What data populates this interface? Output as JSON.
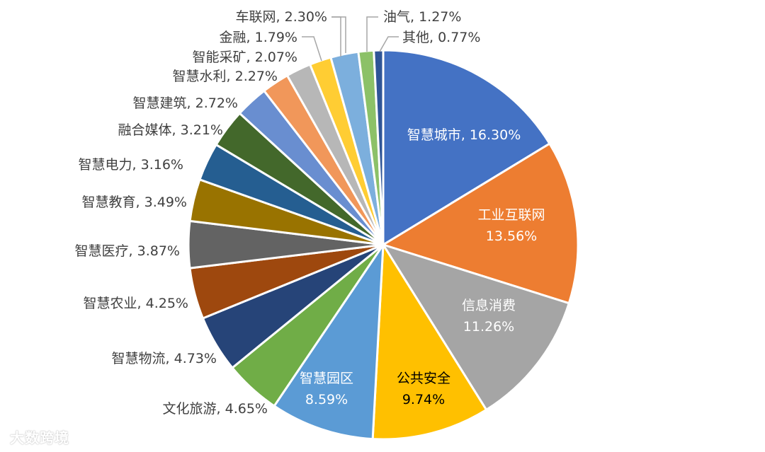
{
  "chart_data": {
    "type": "pie",
    "start_angle_deg": 0,
    "direction": "clockwise",
    "slices": [
      {
        "label": "智慧城市",
        "pct_text": "16.30%",
        "value": 16.3,
        "color": "#4472C4",
        "label_placement": "inside",
        "label_lines": [
          "智慧城市, 16.30%"
        ]
      },
      {
        "label": "工业互联网",
        "pct_text": "13.56%",
        "value": 13.56,
        "color": "#ED7D31",
        "label_placement": "inside",
        "label_lines": [
          "工业互联网",
          "13.56%"
        ]
      },
      {
        "label": "信息消费",
        "pct_text": "11.26%",
        "value": 11.26,
        "color": "#A5A5A5",
        "label_placement": "inside",
        "label_lines": [
          "信息消费",
          "11.26%"
        ]
      },
      {
        "label": "公共安全",
        "pct_text": "9.74%",
        "value": 9.74,
        "color": "#FFC000",
        "label_placement": "inside",
        "label_color": "#000000",
        "label_lines": [
          "公共安全",
          "9.74%"
        ]
      },
      {
        "label": "智慧园区",
        "pct_text": "8.59%",
        "value": 8.59,
        "color": "#5B9BD5",
        "label_placement": "inside",
        "label_lines": [
          "智慧园区",
          "8.59%"
        ]
      },
      {
        "label": "文化旅游",
        "pct_text": "4.65%",
        "value": 4.65,
        "color": "#70AD47",
        "label_placement": "outside",
        "label_lines": [
          "文化旅游, 4.65%"
        ]
      },
      {
        "label": "智慧物流",
        "pct_text": "4.73%",
        "value": 4.73,
        "color": "#264478",
        "label_placement": "outside",
        "label_lines": [
          "智慧物流, 4.73%"
        ]
      },
      {
        "label": "智慧农业",
        "pct_text": "4.25%",
        "value": 4.25,
        "color": "#9E480E",
        "label_placement": "outside",
        "label_lines": [
          "智慧农业, 4.25%"
        ]
      },
      {
        "label": "智慧医疗",
        "pct_text": "3.87%",
        "value": 3.87,
        "color": "#636363",
        "label_placement": "outside",
        "label_lines": [
          "智慧医疗, 3.87%"
        ]
      },
      {
        "label": "智慧教育",
        "pct_text": "3.49%",
        "value": 3.49,
        "color": "#997300",
        "label_placement": "outside",
        "label_lines": [
          "智慧教育, 3.49%"
        ]
      },
      {
        "label": "智慧电力",
        "pct_text": "3.16%",
        "value": 3.16,
        "color": "#255E91",
        "label_placement": "outside",
        "label_lines": [
          "智慧电力, 3.16%"
        ]
      },
      {
        "label": "融合媒体",
        "pct_text": "3.21%",
        "value": 3.21,
        "color": "#43682B",
        "label_placement": "outside",
        "label_lines": [
          "融合媒体, 3.21%"
        ]
      },
      {
        "label": "智慧建筑",
        "pct_text": "2.72%",
        "value": 2.72,
        "color": "#698ED0",
        "label_placement": "outside",
        "label_lines": [
          "智慧建筑, 2.72%"
        ]
      },
      {
        "label": "智慧水利",
        "pct_text": "2.27%",
        "value": 2.27,
        "color": "#F1975A",
        "label_placement": "outside",
        "label_lines": [
          "智慧水利, 2.27%"
        ]
      },
      {
        "label": "智能采矿",
        "pct_text": "2.07%",
        "value": 2.07,
        "color": "#B7B7B7",
        "label_placement": "outside",
        "label_lines": [
          "智能采矿, 2.07%"
        ]
      },
      {
        "label": "金融",
        "pct_text": "1.79%",
        "value": 1.79,
        "color": "#FFCD33",
        "label_placement": "outside",
        "label_lines": [
          "金融, 1.79%"
        ]
      },
      {
        "label": "车联网",
        "pct_text": "2.30%",
        "value": 2.3,
        "color": "#7CAFDD",
        "label_placement": "outside",
        "label_lines": [
          "车联网, 2.30%"
        ]
      },
      {
        "label": "油气",
        "pct_text": "1.27%",
        "value": 1.27,
        "color": "#8CC168",
        "label_placement": "outside",
        "label_lines": [
          "油气, 1.27%"
        ]
      },
      {
        "label": "其他",
        "pct_text": "0.77%",
        "value": 0.77,
        "color": "#2F5597",
        "label_placement": "outside",
        "label_lines": [
          "其他, 0.77%"
        ]
      }
    ]
  },
  "watermark": "大数跨境"
}
